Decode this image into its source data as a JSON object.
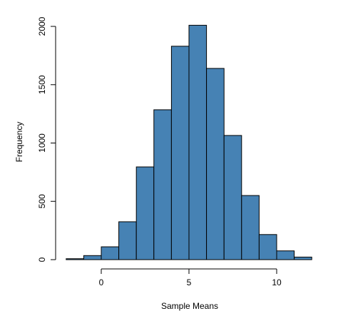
{
  "chart_data": {
    "type": "bar",
    "title": "",
    "xlabel": "Sample Means",
    "ylabel": "Frequency",
    "bin_edges": [
      -2,
      -1,
      0,
      1,
      2,
      3,
      4,
      5,
      6,
      7,
      8,
      9,
      10,
      11,
      12
    ],
    "values": [
      8,
      35,
      110,
      325,
      795,
      1285,
      1830,
      2010,
      1640,
      1065,
      550,
      215,
      75,
      22
    ],
    "bar_color": "#4682b4",
    "xlim": [
      -2,
      12
    ],
    "ylim": [
      0,
      2000
    ],
    "x_ticks": [
      0,
      5,
      10
    ],
    "x_tick_labels": [
      "0",
      "5",
      "10"
    ],
    "y_ticks": [
      0,
      500,
      1000,
      1500,
      2000
    ],
    "y_tick_labels": [
      "0",
      "500",
      "1000",
      "1500",
      "2000"
    ],
    "grid": false,
    "legend": "none"
  }
}
